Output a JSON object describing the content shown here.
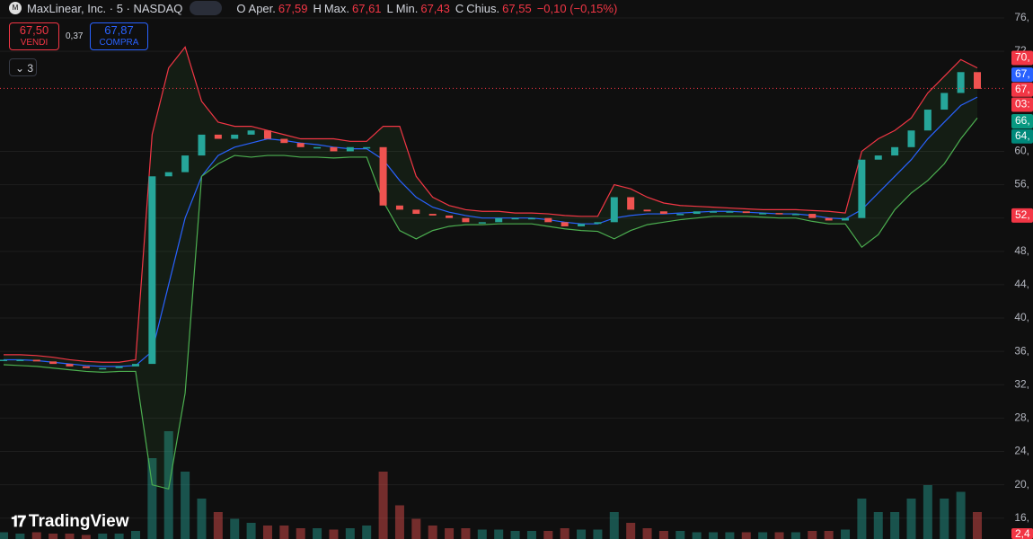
{
  "header": {
    "symbol": "MaxLinear, Inc. · 5 · NASDAQ",
    "ohlc": [
      {
        "key": "O",
        "name": "Aper.",
        "value": "67,59"
      },
      {
        "key": "H",
        "name": "Max.",
        "value": "67,61"
      },
      {
        "key": "L",
        "name": "Min.",
        "value": "67,43"
      },
      {
        "key": "C",
        "name": "Chius.",
        "value": "67,55"
      }
    ],
    "change": "−0,10 (−0,15%)"
  },
  "trade": {
    "sell_price": "67,50",
    "sell_label": "VENDI",
    "spread": "0,37",
    "buy_price": "67,87",
    "buy_label": "COMPRA"
  },
  "indicators_count": "3",
  "brand": "TradingView",
  "chart_data": {
    "type": "candlestick",
    "ylim": [
      13.5,
      78.15
    ],
    "yticks": [
      {
        "value": 76,
        "label": "76,"
      },
      {
        "value": 72,
        "label": "72,"
      },
      {
        "value": 60,
        "label": "60,"
      },
      {
        "value": 56,
        "label": "56,"
      },
      {
        "value": 52,
        "label": "52,"
      },
      {
        "value": 48,
        "label": "48,"
      },
      {
        "value": 44,
        "label": "44,"
      },
      {
        "value": 40,
        "label": "40,"
      },
      {
        "value": 36,
        "label": "36,"
      },
      {
        "value": 32,
        "label": "32,"
      },
      {
        "value": 28,
        "label": "28,"
      },
      {
        "value": 24,
        "label": "24,"
      },
      {
        "value": 20,
        "label": "20,"
      },
      {
        "value": 16,
        "label": "16,"
      }
    ],
    "grid": true,
    "up_color": "#26a69a",
    "down_color": "#ef5350",
    "series": [
      {
        "color": "#ef5350",
        "values": [
          35,
          35,
          34.8,
          34.5,
          34.2,
          34,
          34,
          34.2,
          34.5,
          57,
          57.5,
          59.5,
          62,
          61.5,
          62,
          62.5,
          61.5,
          61,
          60.5,
          60.5,
          60,
          60.5,
          60.5,
          53.5,
          53,
          52.5,
          52.3,
          52,
          51.5,
          51.5,
          52,
          52,
          52,
          51.5,
          51,
          51.3,
          51.5,
          54.5,
          53,
          52.8,
          52.5,
          52.5,
          52.8,
          52.8,
          52.8,
          52.6,
          52.6,
          52.5,
          52.5,
          52,
          51.7,
          52,
          59,
          59.5,
          60.5,
          62.5,
          65,
          67,
          69.5,
          67.5
        ]
      },
      {
        "color": "#f23645",
        "values": [
          35.6,
          35.6,
          35.5,
          35.3,
          35,
          34.8,
          34.7,
          34.7,
          35,
          62,
          70,
          72.5,
          66,
          63.5,
          63,
          63,
          62.5,
          62,
          61.5,
          61.5,
          61.5,
          61.2,
          61.2,
          63,
          63,
          57,
          54.5,
          53.5,
          53,
          52.8,
          52.8,
          52.6,
          52.6,
          52.5,
          52.3,
          52.2,
          52.2,
          56,
          55.5,
          54.5,
          53.8,
          53.5,
          53.4,
          53.3,
          53.2,
          53.1,
          53,
          53,
          53,
          52.9,
          52.8,
          52.6,
          60,
          61.5,
          62.5,
          64,
          67,
          69,
          71,
          70
        ]
      },
      {
        "color": "#2962ff",
        "values": [
          35,
          35,
          34.9,
          34.7,
          34.5,
          34.3,
          34.2,
          34.2,
          34.3,
          36,
          44,
          52,
          57,
          59.5,
          60.5,
          61,
          61.5,
          61.3,
          61,
          60.8,
          60.5,
          60.3,
          60.3,
          59,
          56.5,
          54.5,
          53.3,
          52.7,
          52.3,
          52,
          52,
          52,
          52,
          51.8,
          51.5,
          51.3,
          51.3,
          52,
          52.3,
          52.5,
          52.5,
          52.6,
          52.7,
          52.8,
          52.8,
          52.7,
          52.6,
          52.5,
          52.5,
          52.3,
          52,
          51.9,
          53,
          55,
          57,
          59,
          61.5,
          63.5,
          65.5,
          66.5
        ]
      },
      {
        "color": "#4caf50",
        "values": [
          34.4,
          34.3,
          34.2,
          34,
          33.8,
          33.6,
          33.5,
          33.6,
          33.6,
          20,
          19.5,
          31,
          57,
          58.5,
          59.5,
          59.3,
          59.5,
          59.5,
          59.3,
          59.3,
          59.2,
          59.3,
          59.3,
          54,
          50.5,
          49.5,
          50.5,
          51,
          51.2,
          51.2,
          51.3,
          51.3,
          51.3,
          51,
          50.7,
          50.5,
          50.4,
          49.5,
          50.5,
          51.2,
          51.5,
          51.8,
          52,
          52.2,
          52.2,
          52.2,
          52.1,
          52,
          52,
          51.6,
          51.3,
          51.3,
          48.5,
          50,
          53,
          55,
          56.5,
          58.5,
          61.5,
          64
        ]
      }
    ],
    "volume": {
      "vlim": [
        0,
        40
      ],
      "values": [
        0.5,
        0.4,
        0.5,
        0.4,
        0.4,
        0.3,
        0.4,
        0.4,
        0.6,
        6,
        8,
        5,
        3,
        2,
        1.5,
        1.2,
        1,
        1,
        0.8,
        0.8,
        0.7,
        0.8,
        1,
        5,
        2.5,
        1.5,
        1,
        0.8,
        0.8,
        0.7,
        0.7,
        0.6,
        0.6,
        0.6,
        0.8,
        0.7,
        0.7,
        2,
        1.2,
        0.8,
        0.6,
        0.6,
        0.5,
        0.5,
        0.5,
        0.5,
        0.5,
        0.5,
        0.5,
        0.6,
        0.6,
        0.7,
        3,
        2,
        2,
        3,
        4,
        3,
        3.5,
        2
      ]
    },
    "close_line": 67.55,
    "price_labels": [
      {
        "label": "70,",
        "value": 71.2,
        "color": "#f23645"
      },
      {
        "label": "67,",
        "value": 69.2,
        "color": "#2962ff"
      },
      {
        "label": "67,",
        "value": 67.4,
        "color": "#f23645"
      },
      {
        "label": "03:",
        "value": 65.6,
        "color": "#f23645"
      },
      {
        "label": "66,",
        "value": 63.6,
        "color": "#089981"
      },
      {
        "label": "64,",
        "value": 61.8,
        "color": "#00897b"
      },
      {
        "label": "52,",
        "value": 52.3,
        "color": "#f23645"
      }
    ],
    "volume_label": {
      "label": "2,4",
      "color": "#f23645"
    }
  }
}
